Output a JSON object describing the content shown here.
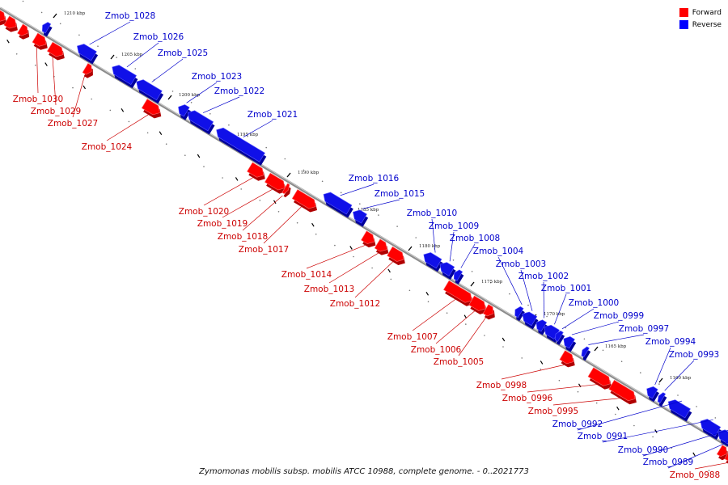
{
  "caption": "Zymomonas mobilis subsp. mobilis ATCC 10988, complete genome. - 0..2021773",
  "legend": [
    {
      "label": "Forward",
      "color": "#ff0000"
    },
    {
      "label": "Reverse",
      "color": "#0000ff"
    }
  ],
  "colors": {
    "forward": "#ff0000",
    "reverse": "#1010e8",
    "forward_label": "#cc0000",
    "reverse_label": "#0000cc",
    "axis": "#8c8c8c"
  },
  "kbp_ticks": [
    "1210 kbp",
    "1205 kbp",
    "1200 kbp",
    "1195 kbp",
    "1190 kbp",
    "1185 kbp",
    "1180 kbp",
    "1175 kbp",
    "1170 kbp",
    "1165 kbp",
    "1160 kbp"
  ],
  "genes": [
    {
      "name": "Zmob_1030",
      "strand": "forward"
    },
    {
      "name": "Zmob_1029",
      "strand": "forward"
    },
    {
      "name": "Zmob_1028",
      "strand": "reverse"
    },
    {
      "name": "Zmob_1027",
      "strand": "forward"
    },
    {
      "name": "Zmob_1026",
      "strand": "reverse"
    },
    {
      "name": "Zmob_1025",
      "strand": "reverse"
    },
    {
      "name": "Zmob_1024",
      "strand": "forward"
    },
    {
      "name": "Zmob_1023",
      "strand": "reverse"
    },
    {
      "name": "Zmob_1022",
      "strand": "reverse"
    },
    {
      "name": "Zmob_1021",
      "strand": "reverse"
    },
    {
      "name": "Zmob_1020",
      "strand": "forward"
    },
    {
      "name": "Zmob_1019",
      "strand": "forward"
    },
    {
      "name": "Zmob_1018",
      "strand": "forward"
    },
    {
      "name": "Zmob_1017",
      "strand": "forward"
    },
    {
      "name": "Zmob_1016",
      "strand": "reverse"
    },
    {
      "name": "Zmob_1015",
      "strand": "reverse"
    },
    {
      "name": "Zmob_1014",
      "strand": "forward"
    },
    {
      "name": "Zmob_1013",
      "strand": "forward"
    },
    {
      "name": "Zmob_1012",
      "strand": "forward"
    },
    {
      "name": "Zmob_1010",
      "strand": "reverse"
    },
    {
      "name": "Zmob_1009",
      "strand": "reverse"
    },
    {
      "name": "Zmob_1008",
      "strand": "reverse"
    },
    {
      "name": "Zmob_1007",
      "strand": "forward"
    },
    {
      "name": "Zmob_1006",
      "strand": "forward"
    },
    {
      "name": "Zmob_1005",
      "strand": "forward"
    },
    {
      "name": "Zmob_1004",
      "strand": "reverse"
    },
    {
      "name": "Zmob_1003",
      "strand": "reverse"
    },
    {
      "name": "Zmob_1002",
      "strand": "reverse"
    },
    {
      "name": "Zmob_1001",
      "strand": "reverse"
    },
    {
      "name": "Zmob_1000",
      "strand": "reverse"
    },
    {
      "name": "Zmob_0999",
      "strand": "reverse"
    },
    {
      "name": "Zmob_0998",
      "strand": "forward"
    },
    {
      "name": "Zmob_0997",
      "strand": "reverse"
    },
    {
      "name": "Zmob_0996",
      "strand": "forward"
    },
    {
      "name": "Zmob_0995",
      "strand": "forward"
    },
    {
      "name": "Zmob_0994",
      "strand": "reverse"
    },
    {
      "name": "Zmob_0993",
      "strand": "reverse"
    },
    {
      "name": "Zmob_0992",
      "strand": "reverse"
    },
    {
      "name": "Zmob_0991",
      "strand": "reverse"
    },
    {
      "name": "Zmob_0990",
      "strand": "reverse"
    },
    {
      "name": "Zmob_0989",
      "strand": "reverse"
    },
    {
      "name": "Zmob_0988",
      "strand": "forward"
    }
  ]
}
